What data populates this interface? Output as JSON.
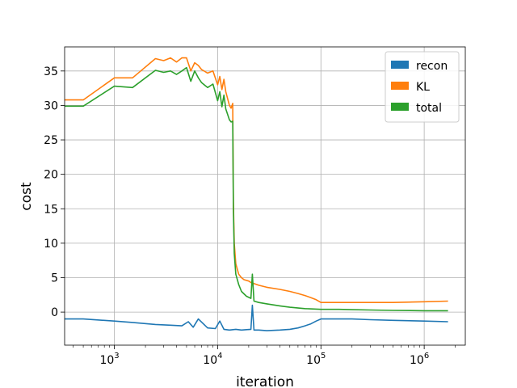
{
  "chart_data": {
    "type": "line",
    "title": "",
    "xlabel": "iteration",
    "ylabel": "cost",
    "xscale": "log",
    "xlim": [
      330,
      2500000
    ],
    "ylim": [
      -4.8,
      38.5
    ],
    "xticks": [
      {
        "value": 1000,
        "base": "10",
        "exp": "3"
      },
      {
        "value": 10000,
        "base": "10",
        "exp": "4"
      },
      {
        "value": 100000,
        "base": "10",
        "exp": "5"
      },
      {
        "value": 1000000,
        "base": "10",
        "exp": "6"
      }
    ],
    "yticks": [
      0,
      5,
      10,
      15,
      20,
      25,
      30,
      35
    ],
    "grid": true,
    "legend_position": "top-right",
    "series": [
      {
        "name": "recon",
        "color": "#1f77b4",
        "x": [
          330,
          500,
          1000,
          1500,
          2500,
          3500,
          4500,
          5200,
          5800,
          6500,
          8000,
          9500,
          10500,
          11500,
          13000,
          15000,
          17000,
          19000,
          21000,
          21700,
          22500,
          25000,
          30000,
          40000,
          50000,
          60000,
          70000,
          80000,
          90000,
          100000,
          150000,
          200000,
          300000,
          500000,
          1000000,
          1700000
        ],
        "y": [
          -1,
          -1,
          -1.3,
          -1.5,
          -1.8,
          -1.9,
          -2.0,
          -1.4,
          -2.2,
          -1.0,
          -2.3,
          -2.4,
          -1.3,
          -2.5,
          -2.6,
          -2.5,
          -2.6,
          -2.55,
          -2.5,
          1.0,
          -2.6,
          -2.6,
          -2.7,
          -2.6,
          -2.5,
          -2.3,
          -2.0,
          -1.7,
          -1.3,
          -1.0,
          -1.0,
          -1.0,
          -1.1,
          -1.2,
          -1.3,
          -1.4
        ]
      },
      {
        "name": "KL",
        "color": "#ff7f0e",
        "x": [
          330,
          500,
          1000,
          1500,
          2500,
          3000,
          3500,
          4000,
          4500,
          5000,
          5500,
          6000,
          6500,
          7000,
          8000,
          9000,
          10000,
          10500,
          11000,
          11500,
          12000,
          13000,
          13500,
          14000,
          14200,
          14500,
          15000,
          16000,
          17000,
          18000,
          20000,
          21000,
          23000,
          25000,
          30000,
          40000,
          50000,
          60000,
          70000,
          80000,
          90000,
          100000,
          150000,
          200000,
          300000,
          500000,
          1000000,
          1700000
        ],
        "y": [
          30.8,
          30.8,
          34.0,
          34.0,
          36.8,
          36.5,
          36.9,
          36.3,
          36.9,
          36.9,
          35.0,
          36.2,
          35.8,
          35.2,
          34.7,
          35.0,
          33.0,
          34.2,
          32.3,
          33.8,
          32.0,
          30.0,
          29.6,
          30.3,
          16.0,
          10.0,
          7.0,
          5.5,
          5.0,
          4.7,
          4.5,
          4.3,
          4.1,
          3.9,
          3.6,
          3.3,
          3.0,
          2.7,
          2.4,
          2.1,
          1.8,
          1.4,
          1.4,
          1.4,
          1.4,
          1.4,
          1.5,
          1.6
        ]
      },
      {
        "name": "total",
        "color": "#2ca02c",
        "x": [
          330,
          500,
          1000,
          1500,
          2500,
          3000,
          3500,
          4000,
          4500,
          5000,
          5500,
          6000,
          6500,
          7000,
          8000,
          9000,
          10000,
          10500,
          11000,
          11500,
          12000,
          13000,
          13500,
          14000,
          14200,
          14500,
          15000,
          16000,
          17000,
          19000,
          21000,
          21700,
          22500,
          25000,
          30000,
          40000,
          50000,
          70000,
          100000,
          150000,
          200000,
          300000,
          500000,
          1000000,
          1700000
        ],
        "y": [
          29.9,
          29.9,
          32.8,
          32.6,
          35.1,
          34.8,
          35.0,
          34.5,
          35.0,
          35.5,
          33.5,
          35.0,
          34.0,
          33.3,
          32.6,
          33.1,
          30.7,
          32.0,
          29.8,
          31.5,
          29.5,
          27.9,
          27.6,
          27.7,
          15.0,
          8.5,
          5.5,
          4.0,
          3.0,
          2.3,
          2.0,
          5.5,
          1.6,
          1.4,
          1.2,
          0.9,
          0.7,
          0.5,
          0.4,
          0.4,
          0.35,
          0.3,
          0.25,
          0.2,
          0.2
        ]
      }
    ]
  }
}
